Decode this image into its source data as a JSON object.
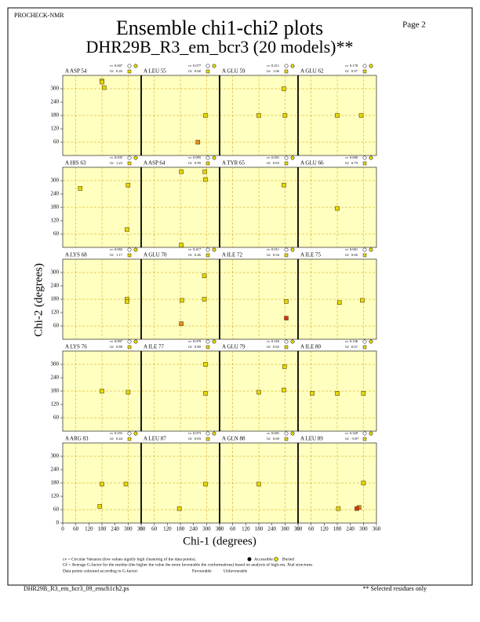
{
  "header": {
    "program": "PROCHECK-NMR",
    "page": "Page  2",
    "title": "Ensemble chi1-chi2 plots",
    "subtitle": "DHR29B_R3_em_bcr3 (20 models)**"
  },
  "axes": {
    "xlabel": "Chi-1 (degrees)",
    "ylabel": "Chi-2 (degrees)",
    "xlim": [
      0,
      360
    ],
    "ylim": [
      0,
      360
    ],
    "xticks": [
      0,
      60,
      120,
      180,
      240,
      300,
      360
    ],
    "yticks": [
      0,
      60,
      120,
      180,
      240,
      300
    ],
    "grid_lines": [
      60,
      180,
      300
    ],
    "cv_prefix": "cv",
    "gf_prefix": "Gf"
  },
  "legend": {
    "cv_note": "cv = Circular Variance (low values signify high clustering of the data points).",
    "accessible": "Accessible",
    "buried": "Buried",
    "gf_note": "Gf = Average G-factor for the residue (the higher the value the more favourable the conformations) based on analysis of high-res. Xtal structures",
    "colour_note": "Data points coloured according to G-factor:",
    "favourable": "Favourable",
    "unfavourable": "Unfavourable",
    "favourable_color": "#e8d800",
    "unfavourable_color": "#d83020"
  },
  "footer": {
    "file": "DHR29B_R3_em_bcr3_09_ensch1ch2.ps",
    "note": "** Selected residues only"
  },
  "chart_data": [
    {
      "type": "scatter",
      "title": "A ASP 54",
      "cv": "0.007",
      "gf": "0.26",
      "x": [
        180,
        180,
        190
      ],
      "y": [
        335,
        330,
        305
      ],
      "colors": [
        "#e8d800",
        "#e8d800",
        "#e8d800"
      ]
    },
    {
      "type": "scatter",
      "title": "A LEU 55",
      "cv": "0.077",
      "gf": "0.68",
      "x": [
        260,
        295
      ],
      "y": [
        60,
        180
      ],
      "colors": [
        "#e09020",
        "#e8d800"
      ]
    },
    {
      "type": "scatter",
      "title": "A GLU 59",
      "cv": "0.211",
      "gf": "1.06",
      "x": [
        180,
        300,
        295
      ],
      "y": [
        180,
        180,
        300
      ],
      "colors": [
        "#e8d800",
        "#e8d800",
        "#e8d800"
      ]
    },
    {
      "type": "scatter",
      "title": "A GLU 62",
      "cv": "0.178",
      "gf": "0.97",
      "x": [
        180,
        290
      ],
      "y": [
        180,
        180
      ],
      "colors": [
        "#e8d800",
        "#e8d800"
      ]
    },
    {
      "type": "scatter",
      "title": "A HIS 63",
      "cv": "0.035",
      "gf": "1.23",
      "x": [
        80,
        300,
        295
      ],
      "y": [
        265,
        280,
        80
      ],
      "colors": [
        "#e8d800",
        "#e8d800",
        "#e8d800"
      ]
    },
    {
      "type": "scatter",
      "title": "A ASP 64",
      "cv": "0.095",
      "gf": "0.99",
      "x": [
        184,
        292,
        295,
        184
      ],
      "y": [
        340,
        340,
        305,
        10
      ],
      "colors": [
        "#e8d800",
        "#e8d800",
        "#e8d800",
        "#e8d800"
      ]
    },
    {
      "type": "scatter",
      "title": "A TYR 65",
      "cv": "0.001",
      "gf": "0.83",
      "x": [
        295
      ],
      "y": [
        280
      ],
      "colors": [
        "#e8d800"
      ]
    },
    {
      "type": "scatter",
      "title": "A GLU 66",
      "cv": "0.000",
      "gf": "0.79",
      "x": [
        180
      ],
      "y": [
        175
      ],
      "colors": [
        "#e8d800"
      ]
    },
    {
      "type": "scatter",
      "title": "A LYS 68",
      "cv": "0.002",
      "gf": "1.17",
      "x": [
        295,
        295
      ],
      "y": [
        180,
        170
      ],
      "colors": [
        "#e8d800",
        "#e8d800"
      ]
    },
    {
      "type": "scatter",
      "title": "A GLU 70",
      "cv": "0.417",
      "gf": "0.46",
      "x": [
        187,
        290,
        290,
        184
      ],
      "y": [
        175,
        180,
        285,
        70
      ],
      "colors": [
        "#e8d800",
        "#e8d800",
        "#e8d800",
        "#e09020"
      ]
    },
    {
      "type": "scatter",
      "title": "A ILE 72",
      "cv": "0.011",
      "gf": "0.54",
      "x": [
        306,
        306
      ],
      "y": [
        170,
        95
      ],
      "colors": [
        "#e8d800",
        "#d83020"
      ]
    },
    {
      "type": "scatter",
      "title": "A ILE 75",
      "cv": "0.061",
      "gf": "0.66",
      "x": [
        190,
        295
      ],
      "y": [
        165,
        175
      ],
      "colors": [
        "#e8d800",
        "#e8d800"
      ]
    },
    {
      "type": "scatter",
      "title": "A LYS 76",
      "cv": "0.097",
      "gf": "0.88",
      "x": [
        180,
        300
      ],
      "y": [
        180,
        175
      ],
      "colors": [
        "#e8d800",
        "#e8d800"
      ]
    },
    {
      "type": "scatter",
      "title": "A ILE 77",
      "cv": "0.079",
      "gf": "0.80",
      "x": [
        295,
        295
      ],
      "y": [
        300,
        170
      ],
      "colors": [
        "#e8d800",
        "#e8d800"
      ]
    },
    {
      "type": "scatter",
      "title": "A GLU 79",
      "cv": "0.163",
      "gf": "0.82",
      "x": [
        180,
        295,
        298
      ],
      "y": [
        175,
        185,
        290
      ],
      "colors": [
        "#e8d800",
        "#e8d800",
        "#e8d800"
      ]
    },
    {
      "type": "scatter",
      "title": "A ILE 80",
      "cv": "0.136",
      "gf": "0.67",
      "x": [
        65,
        180,
        300
      ],
      "y": [
        170,
        170,
        170
      ],
      "colors": [
        "#e8d800",
        "#e8d800",
        "#e8d800"
      ]
    },
    {
      "type": "scatter",
      "title": "A ARG 83",
      "cv": "0.191",
      "gf": "0.44",
      "x": [
        180,
        290,
        170
      ],
      "y": [
        175,
        175,
        75
      ],
      "colors": [
        "#e8d800",
        "#e8d800",
        "#e8d800"
      ]
    },
    {
      "type": "scatter",
      "title": "A LEU 87",
      "cv": "0.073",
      "gf": "0.83",
      "x": [
        295,
        175
      ],
      "y": [
        175,
        65
      ],
      "colors": [
        "#e8d800",
        "#e8d800"
      ]
    },
    {
      "type": "scatter",
      "title": "A GLN 88",
      "cv": "0.001",
      "gf": "0.69",
      "x": [
        180
      ],
      "y": [
        175
      ],
      "colors": [
        "#e8d800"
      ]
    },
    {
      "type": "scatter",
      "title": "A LEU 89",
      "cv": "0.329",
      "gf": "-0.07",
      "x": [
        185,
        300,
        280,
        270
      ],
      "y": [
        65,
        180,
        70,
        65
      ],
      "colors": [
        "#e8d800",
        "#e8d800",
        "#e09020",
        "#d83020"
      ]
    }
  ]
}
